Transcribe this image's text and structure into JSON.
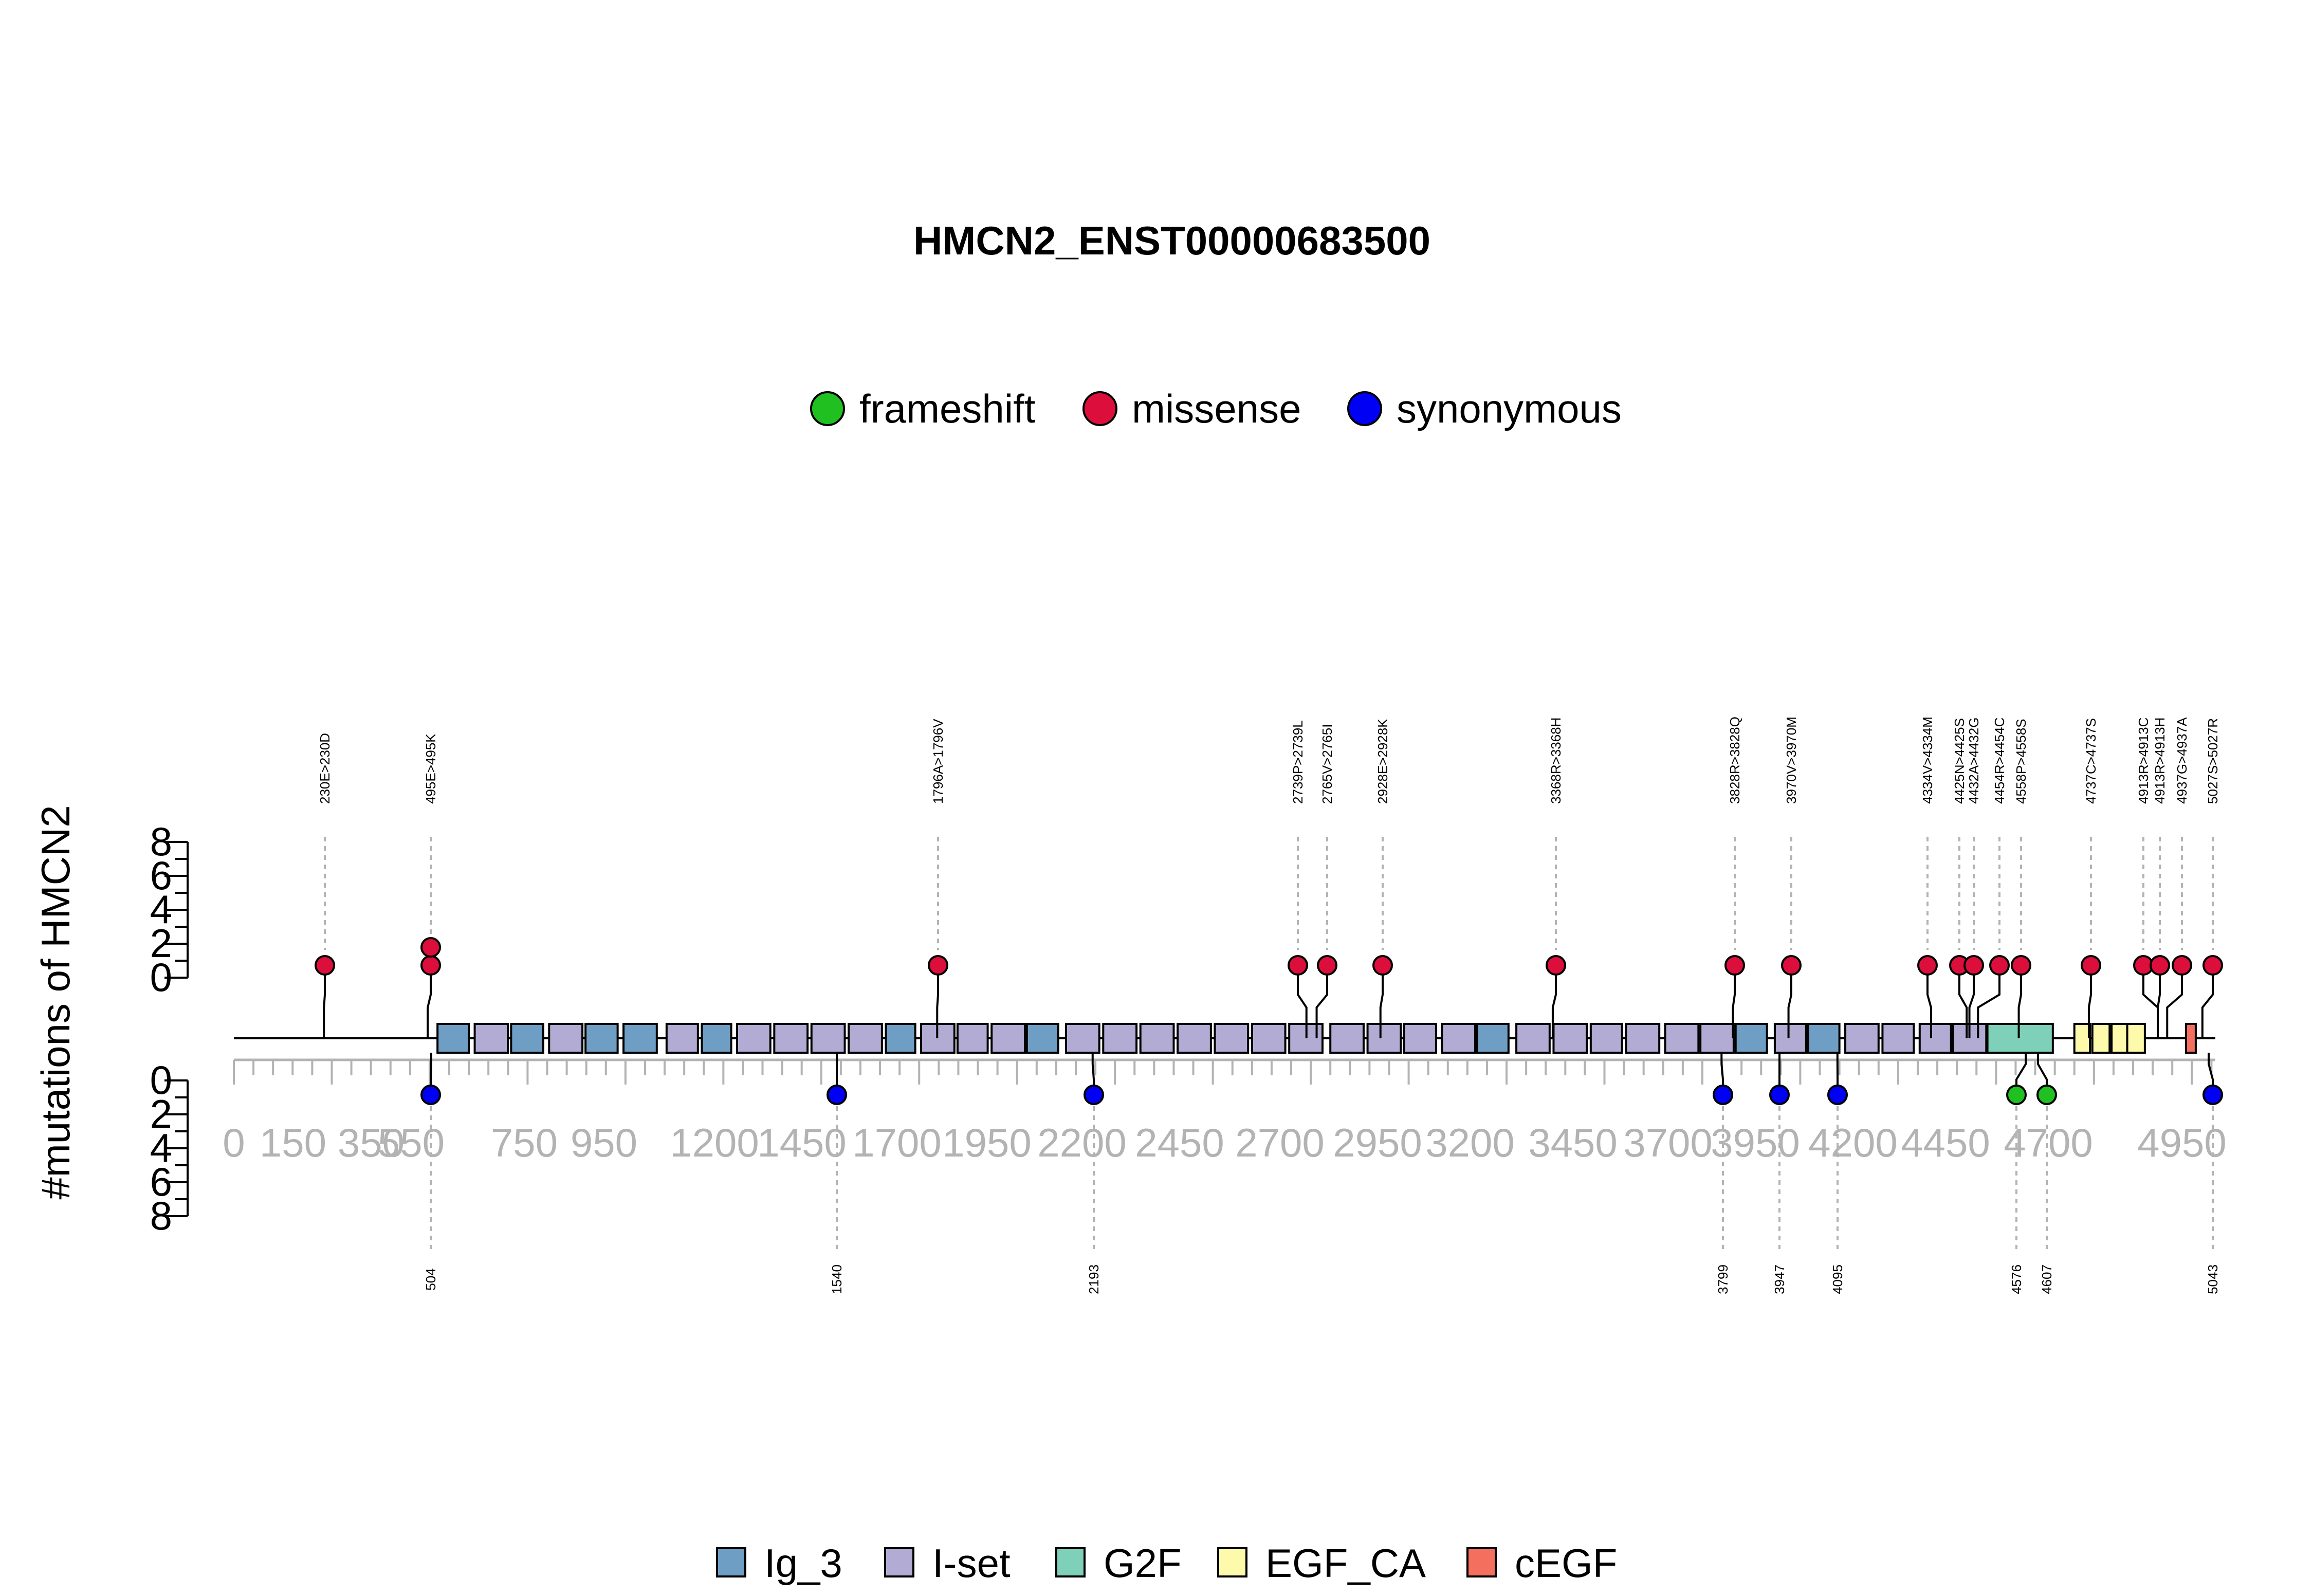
{
  "chart_data": {
    "type": "lollipop",
    "title": "HMCN2_ENST00000683500",
    "ylabel": "#mutations of HMCN2",
    "protein_length": 5060,
    "x_ticks": [
      "0",
      "150",
      "350",
      "550",
      "750",
      "950",
      "1200",
      "1450",
      "1700",
      "1950",
      "2200",
      "2450",
      "2700",
      "2950",
      "3200",
      "3450",
      "3700",
      "3950",
      "4200",
      "4450",
      "4700",
      "4950"
    ],
    "y_ticks_top": [
      "0",
      "2",
      "4",
      "6",
      "8"
    ],
    "y_ticks_bottom": [
      "0",
      "2",
      "4",
      "6",
      "8"
    ],
    "y_range": [
      0,
      8
    ],
    "mutation_legend": [
      {
        "name": "frameshift",
        "color": "#1fc01f"
      },
      {
        "name": "missense",
        "color": "#dc0f3c"
      },
      {
        "name": "synonymous",
        "color": "#0000f5"
      }
    ],
    "domain_legend": [
      {
        "name": "Ig_3",
        "color": "#6f9ec4"
      },
      {
        "name": "I-set",
        "color": "#b2acd4"
      },
      {
        "name": "G2F",
        "color": "#7fd0b8"
      },
      {
        "name": "EGF_CA",
        "color": "#fdfbab"
      },
      {
        "name": "cEGF",
        "color": "#f56f5e"
      }
    ],
    "domains": [
      {
        "type": "Ig_3",
        "start": 520,
        "end": 600
      },
      {
        "type": "I-set",
        "start": 615,
        "end": 700
      },
      {
        "type": "Ig_3",
        "start": 708,
        "end": 790
      },
      {
        "type": "I-set",
        "start": 805,
        "end": 890
      },
      {
        "type": "Ig_3",
        "start": 898,
        "end": 980
      },
      {
        "type": "Ig_3",
        "start": 995,
        "end": 1080
      },
      {
        "type": "I-set",
        "start": 1105,
        "end": 1185
      },
      {
        "type": "Ig_3",
        "start": 1195,
        "end": 1270
      },
      {
        "type": "I-set",
        "start": 1285,
        "end": 1370
      },
      {
        "type": "I-set",
        "start": 1380,
        "end": 1465
      },
      {
        "type": "I-set",
        "start": 1475,
        "end": 1560
      },
      {
        "type": "I-set",
        "start": 1570,
        "end": 1655
      },
      {
        "type": "Ig_3",
        "start": 1665,
        "end": 1740
      },
      {
        "type": "I-set",
        "start": 1755,
        "end": 1840
      },
      {
        "type": "I-set",
        "start": 1848,
        "end": 1925
      },
      {
        "type": "I-set",
        "start": 1935,
        "end": 2020
      },
      {
        "type": "Ig_3",
        "start": 2025,
        "end": 2105
      },
      {
        "type": "I-set",
        "start": 2125,
        "end": 2210
      },
      {
        "type": "I-set",
        "start": 2220,
        "end": 2305
      },
      {
        "type": "I-set",
        "start": 2315,
        "end": 2400
      },
      {
        "type": "I-set",
        "start": 2410,
        "end": 2495
      },
      {
        "type": "I-set",
        "start": 2505,
        "end": 2590
      },
      {
        "type": "I-set",
        "start": 2600,
        "end": 2685
      },
      {
        "type": "I-set",
        "start": 2695,
        "end": 2780
      },
      {
        "type": "I-set",
        "start": 2800,
        "end": 2885
      },
      {
        "type": "I-set",
        "start": 2895,
        "end": 2980
      },
      {
        "type": "I-set",
        "start": 2988,
        "end": 3070
      },
      {
        "type": "I-set",
        "start": 3085,
        "end": 3170
      },
      {
        "type": "Ig_3",
        "start": 3175,
        "end": 3255
      },
      {
        "type": "I-set",
        "start": 3275,
        "end": 3360
      },
      {
        "type": "I-set",
        "start": 3370,
        "end": 3455
      },
      {
        "type": "I-set",
        "start": 3465,
        "end": 3545
      },
      {
        "type": "I-set",
        "start": 3555,
        "end": 3640
      },
      {
        "type": "I-set",
        "start": 3655,
        "end": 3740
      },
      {
        "type": "I-set",
        "start": 3745,
        "end": 3830
      },
      {
        "type": "Ig_3",
        "start": 3835,
        "end": 3915
      },
      {
        "type": "I-set",
        "start": 3935,
        "end": 4015
      },
      {
        "type": "Ig_3",
        "start": 4020,
        "end": 4100
      },
      {
        "type": "I-set",
        "start": 4115,
        "end": 4200
      },
      {
        "type": "I-set",
        "start": 4210,
        "end": 4290
      },
      {
        "type": "I-set",
        "start": 4305,
        "end": 4385
      },
      {
        "type": "I-set",
        "start": 4390,
        "end": 4475
      },
      {
        "type": "G2F",
        "start": 4478,
        "end": 4645
      },
      {
        "type": "EGF_CA",
        "start": 4700,
        "end": 4740
      },
      {
        "type": "EGF_CA",
        "start": 4746,
        "end": 4790
      },
      {
        "type": "EGF_CA",
        "start": 4795,
        "end": 4835
      },
      {
        "type": "EGF_CA",
        "start": 4835,
        "end": 4880
      },
      {
        "type": "cEGF",
        "start": 4985,
        "end": 5010
      }
    ],
    "mutations_top": [
      {
        "pos": 230,
        "label": "230E>230D",
        "type": "missense",
        "count": 1
      },
      {
        "pos": 495,
        "label": "495E>495K",
        "type": "missense",
        "count": 2
      },
      {
        "pos": 1796,
        "label": "1796A>1796V",
        "type": "missense",
        "count": 1
      },
      {
        "pos": 2739,
        "label": "2739P>2739L",
        "type": "missense",
        "count": 1
      },
      {
        "pos": 2765,
        "label": "2765V>2765I",
        "type": "missense",
        "count": 1
      },
      {
        "pos": 2928,
        "label": "2928E>2928K",
        "type": "missense",
        "count": 1
      },
      {
        "pos": 3368,
        "label": "3368R>3368H",
        "type": "missense",
        "count": 1
      },
      {
        "pos": 3828,
        "label": "3828R>3828Q",
        "type": "missense",
        "count": 1
      },
      {
        "pos": 3970,
        "label": "3970V>3970M",
        "type": "missense",
        "count": 1
      },
      {
        "pos": 4334,
        "label": "4334V>4334M",
        "type": "missense",
        "count": 1
      },
      {
        "pos": 4425,
        "label": "4425N>4425S",
        "type": "missense",
        "count": 1
      },
      {
        "pos": 4432,
        "label": "4432A>4432G",
        "type": "missense",
        "count": 1
      },
      {
        "pos": 4454,
        "label": "4454R>4454C",
        "type": "missense",
        "count": 1
      },
      {
        "pos": 4558,
        "label": "4558P>4558S",
        "type": "missense",
        "count": 1
      },
      {
        "pos": 4737,
        "label": "4737C>4737S",
        "type": "missense",
        "count": 1
      },
      {
        "pos": 4913,
        "label": "4913R>4913C",
        "type": "missense",
        "count": 1
      },
      {
        "pos": 4913,
        "label": "4913R>4913H",
        "type": "missense",
        "count": 1
      },
      {
        "pos": 4937,
        "label": "4937G>4937A",
        "type": "missense",
        "count": 1
      },
      {
        "pos": 5027,
        "label": "5027S>5027R",
        "type": "missense",
        "count": 1
      }
    ],
    "mutations_bottom": [
      {
        "pos": 504,
        "label": "504",
        "type": "synonymous",
        "count": 1
      },
      {
        "pos": 1540,
        "label": "1540",
        "type": "synonymous",
        "count": 1
      },
      {
        "pos": 2193,
        "label": "2193",
        "type": "synonymous",
        "count": 1
      },
      {
        "pos": 3799,
        "label": "3799",
        "type": "synonymous",
        "count": 1
      },
      {
        "pos": 3947,
        "label": "3947",
        "type": "synonymous",
        "count": 1
      },
      {
        "pos": 4095,
        "label": "4095",
        "type": "synonymous",
        "count": 1
      },
      {
        "pos": 4576,
        "label": "4576",
        "type": "frameshift",
        "count": 1
      },
      {
        "pos": 4607,
        "label": "4607",
        "type": "frameshift",
        "count": 1
      },
      {
        "pos": 5043,
        "label": "5043",
        "type": "synonymous",
        "count": 1
      }
    ]
  }
}
